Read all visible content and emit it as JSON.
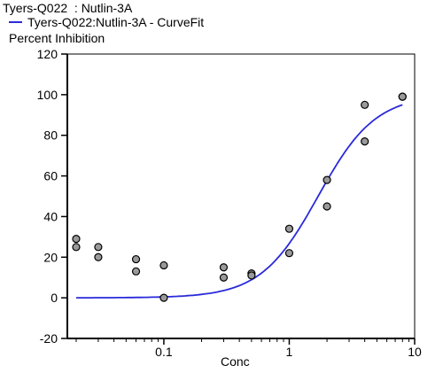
{
  "chart_data": {
    "type": "scatter",
    "title": "Tyers-Q022  : Nutlin-3A",
    "legend": [
      "Tyers-Q022:Nutlin-3A - CurveFit"
    ],
    "ylabel": "Percent Inhibition",
    "xlabel": "Conc",
    "x_scale": "log",
    "xlim": [
      0.017,
      10
    ],
    "ylim": [
      -20,
      120
    ],
    "x_ticks": [
      "0.1",
      "1",
      "10"
    ],
    "y_ticks": [
      "-20",
      "0",
      "20",
      "40",
      "60",
      "80",
      "100",
      "120"
    ],
    "points": [
      {
        "x": 0.02,
        "y": 29
      },
      {
        "x": 0.02,
        "y": 25
      },
      {
        "x": 0.03,
        "y": 25
      },
      {
        "x": 0.03,
        "y": 20
      },
      {
        "x": 0.06,
        "y": 19
      },
      {
        "x": 0.06,
        "y": 13
      },
      {
        "x": 0.1,
        "y": 16
      },
      {
        "x": 0.1,
        "y": 0
      },
      {
        "x": 0.3,
        "y": 15
      },
      {
        "x": 0.3,
        "y": 10
      },
      {
        "x": 0.5,
        "y": 12
      },
      {
        "x": 0.5,
        "y": 11
      },
      {
        "x": 1,
        "y": 34
      },
      {
        "x": 1,
        "y": 22
      },
      {
        "x": 2,
        "y": 58
      },
      {
        "x": 2,
        "y": 45
      },
      {
        "x": 4,
        "y": 95
      },
      {
        "x": 4,
        "y": 77
      },
      {
        "x": 8,
        "y": 99
      },
      {
        "x": 8,
        "y": 99
      }
    ],
    "curve_fit": {
      "bottom": 0,
      "top": 100,
      "ec50": 1.7,
      "hill": 1.9,
      "x_range": [
        0.02,
        8
      ]
    },
    "colors": {
      "curve": "#2a2adb",
      "point_fill": "#9a9a9a",
      "point_stroke": "#000000",
      "axis": "#000000"
    },
    "grid": false,
    "legend_position": "top-left"
  }
}
